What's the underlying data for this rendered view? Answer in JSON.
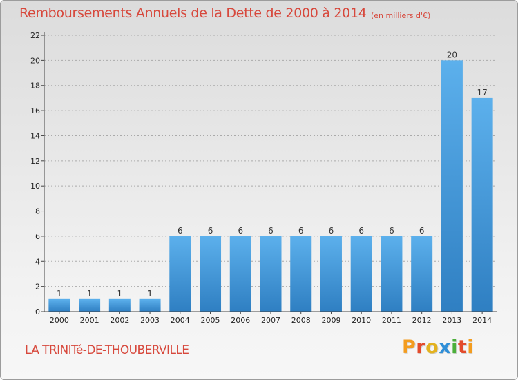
{
  "header": {
    "title": "Remboursements Annuels de la Dette de 2000 à 2014",
    "unit": "(en milliers d'€)"
  },
  "footer": {
    "commune": "LA TRINITé-DE-THOUBERVILLE",
    "logo_letters": [
      "P",
      "r",
      "o",
      "x",
      "i",
      "t",
      "i"
    ],
    "logo_colors": [
      "#f39c1f",
      "#e34b2c",
      "#e3b21f",
      "#2f8fd8",
      "#4caf3a",
      "#e34b2c",
      "#f39c1f"
    ]
  },
  "colors": {
    "bar": "#4a9ee0",
    "bar_top": "#5cb0ec",
    "bar_bottom": "#2f7fc2",
    "axis": "#444444",
    "grid": "#aaaaaa",
    "text_accent": "#d7483c"
  },
  "chart_data": {
    "type": "bar",
    "title": "Remboursements Annuels de la Dette de 2000 à 2014",
    "subtitle": "(en milliers d'€)",
    "xlabel": "",
    "ylabel": "",
    "categories": [
      "2000",
      "2001",
      "2002",
      "2003",
      "2004",
      "2005",
      "2006",
      "2007",
      "2008",
      "2009",
      "2010",
      "2011",
      "2012",
      "2013",
      "2014"
    ],
    "values": [
      1,
      1,
      1,
      1,
      6,
      6,
      6,
      6,
      6,
      6,
      6,
      6,
      6,
      20,
      17
    ],
    "data_labels": [
      "1",
      "1",
      "1",
      "1",
      "6",
      "6",
      "6",
      "6",
      "6",
      "6",
      "6",
      "6",
      "6",
      "20",
      "17"
    ],
    "ylim": [
      0,
      22
    ],
    "yticks": [
      0,
      2,
      4,
      6,
      8,
      10,
      12,
      14,
      16,
      18,
      20,
      22
    ],
    "grid": "horizontal dashed",
    "legend": "none"
  }
}
